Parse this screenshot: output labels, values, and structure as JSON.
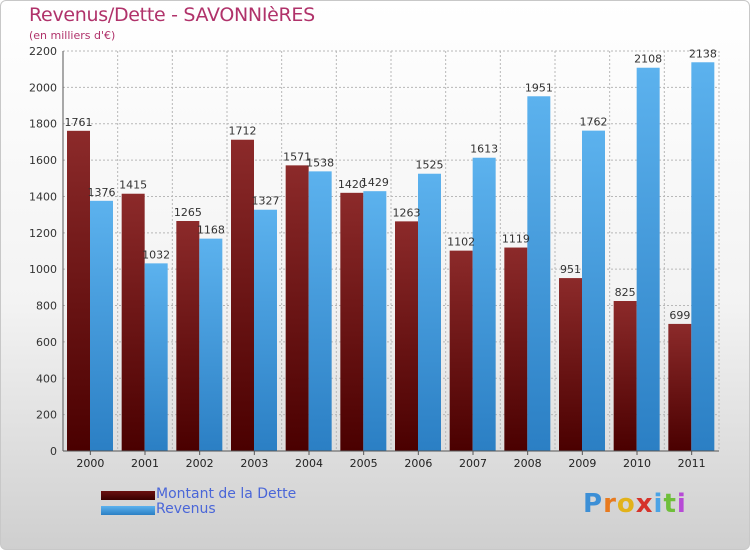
{
  "title": "Revenus/Dette - SAVONNIèRES",
  "subtitle": "(en milliers d'€)",
  "chart_data": {
    "type": "bar",
    "title": "Revenus/Dette - SAVONNIèRES",
    "ylabel": "(en milliers d'€)",
    "xlabel": "",
    "categories": [
      "2000",
      "2001",
      "2002",
      "2003",
      "2004",
      "2005",
      "2006",
      "2007",
      "2008",
      "2009",
      "2010",
      "2011"
    ],
    "series": [
      {
        "name": "Montant de la Dette",
        "color": "#7a1a1a",
        "values": [
          1761,
          1415,
          1265,
          1712,
          1571,
          1420,
          1263,
          1102,
          1119,
          951,
          825,
          699
        ]
      },
      {
        "name": "Revenus",
        "color": "#4aa3e6",
        "values": [
          1376,
          1032,
          1168,
          1327,
          1538,
          1429,
          1525,
          1613,
          1951,
          1762,
          2108,
          2138
        ]
      }
    ],
    "ylim": [
      0,
      2200
    ],
    "yticks": [
      0,
      200,
      400,
      600,
      800,
      1000,
      1200,
      1400,
      1600,
      1800,
      2000,
      2200
    ],
    "grid": true,
    "legend": "bottom-left"
  },
  "legend": {
    "items": [
      {
        "label": "Montant de la Dette",
        "color": "#5a0a0a"
      },
      {
        "label": "Revenus",
        "color": "#4aa3e6"
      }
    ]
  },
  "logo": {
    "letters": [
      "P",
      "r",
      "o",
      "x",
      "i",
      "t",
      "i"
    ],
    "colors": [
      "#3c8fd6",
      "#e87a1e",
      "#e2b21a",
      "#d6332a",
      "#4aa3e6",
      "#6fbf3a",
      "#b74ad6"
    ]
  }
}
